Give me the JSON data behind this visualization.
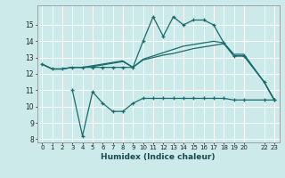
{
  "xlabel": "Humidex (Indice chaleur)",
  "background_color": "#cceaea",
  "grid_color": "#b0d8d8",
  "line_color": "#1a6b6b",
  "x_ticks": [
    0,
    1,
    2,
    3,
    4,
    5,
    6,
    7,
    8,
    9,
    10,
    11,
    12,
    13,
    14,
    15,
    16,
    17,
    18,
    19,
    20,
    22,
    23
  ],
  "x_tick_labels": [
    "0",
    "1",
    "2",
    "3",
    "4",
    "5",
    "6",
    "7",
    "8",
    "9",
    "10",
    "11",
    "12",
    "13",
    "14",
    "15",
    "16",
    "17",
    "18",
    "19",
    "20",
    "22",
    "23"
  ],
  "ylim": [
    7.8,
    16.2
  ],
  "xlim": [
    -0.5,
    23.5
  ],
  "yticks": [
    8,
    9,
    10,
    11,
    12,
    13,
    14,
    15
  ],
  "line1_x": [
    0,
    1,
    2,
    3,
    4,
    5,
    6,
    7,
    8,
    9,
    10,
    11,
    12,
    13,
    14,
    15,
    16,
    17,
    18,
    19,
    20,
    22,
    23
  ],
  "line1_y": [
    12.6,
    12.3,
    12.3,
    12.4,
    12.4,
    12.4,
    12.4,
    12.4,
    12.4,
    12.4,
    14.0,
    15.5,
    14.3,
    15.5,
    15.0,
    15.3,
    15.3,
    15.0,
    13.9,
    13.1,
    13.1,
    11.5,
    10.4
  ],
  "line2_x": [
    0,
    1,
    2,
    3,
    4,
    5,
    6,
    7,
    8,
    9,
    10,
    11,
    12,
    13,
    14,
    15,
    16,
    17,
    18,
    19,
    20,
    22,
    23
  ],
  "line2_y": [
    12.6,
    12.3,
    12.3,
    12.4,
    12.4,
    12.5,
    12.6,
    12.7,
    12.8,
    12.4,
    12.9,
    13.1,
    13.3,
    13.5,
    13.7,
    13.8,
    13.9,
    14.0,
    13.9,
    13.2,
    13.2,
    11.5,
    10.4
  ],
  "line3_x": [
    0,
    1,
    2,
    3,
    4,
    5,
    6,
    7,
    8,
    9,
    10,
    11,
    12,
    13,
    14,
    15,
    16,
    17,
    18,
    19,
    20,
    22,
    23
  ],
  "line3_y": [
    12.6,
    12.3,
    12.3,
    12.4,
    12.4,
    12.45,
    12.55,
    12.65,
    12.75,
    12.4,
    12.85,
    13.0,
    13.15,
    13.25,
    13.4,
    13.55,
    13.65,
    13.75,
    13.85,
    13.1,
    13.1,
    11.5,
    10.4
  ],
  "line4_x": [
    3,
    4,
    5,
    6,
    7,
    8,
    9,
    10,
    11,
    12,
    13,
    14,
    15,
    16,
    17,
    18,
    19,
    20,
    22,
    23
  ],
  "line4_y": [
    11.0,
    8.2,
    10.9,
    10.2,
    9.7,
    9.7,
    10.2,
    10.5,
    10.5,
    10.5,
    10.5,
    10.5,
    10.5,
    10.5,
    10.5,
    10.5,
    10.4,
    10.4,
    10.4,
    10.4
  ]
}
